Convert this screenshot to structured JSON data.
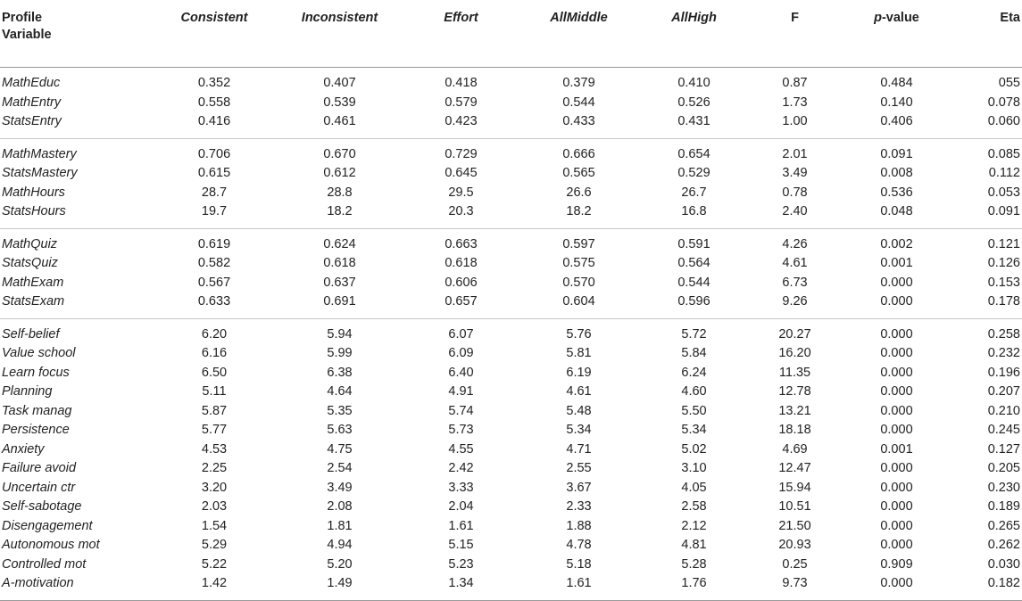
{
  "header": {
    "label_line1": "Profile",
    "label_line2": "Variable",
    "columns": [
      {
        "text": "Consistent",
        "italic": true
      },
      {
        "text": "Inconsistent",
        "italic": true
      },
      {
        "text": "Effort",
        "italic": true
      },
      {
        "text": "AllMiddle",
        "italic": true
      },
      {
        "text": "AllHigh",
        "italic": true
      },
      {
        "text": "F",
        "italic": false
      },
      {
        "text": "p",
        "suffix": "-value",
        "italic": false
      },
      {
        "text": "Eta",
        "italic": false
      }
    ]
  },
  "groups": [
    [
      [
        "MathEduc",
        "0.352",
        "0.407",
        "0.418",
        "0.379",
        "0.410",
        "0.87",
        "0.484",
        "055"
      ],
      [
        "MathEntry",
        "0.558",
        "0.539",
        "0.579",
        "0.544",
        "0.526",
        "1.73",
        "0.140",
        "0.078"
      ],
      [
        "StatsEntry",
        "0.416",
        "0.461",
        "0.423",
        "0.433",
        "0.431",
        "1.00",
        "0.406",
        "0.060"
      ]
    ],
    [
      [
        "MathMastery",
        "0.706",
        "0.670",
        "0.729",
        "0.666",
        "0.654",
        "2.01",
        "0.091",
        "0.085"
      ],
      [
        "StatsMastery",
        "0.615",
        "0.612",
        "0.645",
        "0.565",
        "0.529",
        "3.49",
        "0.008",
        "0.112"
      ],
      [
        "MathHours",
        "28.7",
        "28.8",
        "29.5",
        "26.6",
        "26.7",
        "0.78",
        "0.536",
        "0.053"
      ],
      [
        "StatsHours",
        "19.7",
        "18.2",
        "20.3",
        "18.2",
        "16.8",
        "2.40",
        "0.048",
        "0.091"
      ]
    ],
    [
      [
        "MathQuiz",
        "0.619",
        "0.624",
        "0.663",
        "0.597",
        "0.591",
        "4.26",
        "0.002",
        "0.121"
      ],
      [
        "StatsQuiz",
        "0.582",
        "0.618",
        "0.618",
        "0.575",
        "0.564",
        "4.61",
        "0.001",
        "0.126"
      ],
      [
        "MathExam",
        "0.567",
        "0.637",
        "0.606",
        "0.570",
        "0.544",
        "6.73",
        "0.000",
        "0.153"
      ],
      [
        "StatsExam",
        "0.633",
        "0.691",
        "0.657",
        "0.604",
        "0.596",
        "9.26",
        "0.000",
        "0.178"
      ]
    ],
    [
      [
        "Self-belief",
        "6.20",
        "5.94",
        "6.07",
        "5.76",
        "5.72",
        "20.27",
        "0.000",
        "0.258"
      ],
      [
        "Value school",
        "6.16",
        "5.99",
        "6.09",
        "5.81",
        "5.84",
        "16.20",
        "0.000",
        "0.232"
      ],
      [
        "Learn focus",
        "6.50",
        "6.38",
        "6.40",
        "6.19",
        "6.24",
        "11.35",
        "0.000",
        "0.196"
      ],
      [
        "Planning",
        "5.11",
        "4.64",
        "4.91",
        "4.61",
        "4.60",
        "12.78",
        "0.000",
        "0.207"
      ],
      [
        "Task manag",
        "5.87",
        "5.35",
        "5.74",
        "5.48",
        "5.50",
        "13.21",
        "0.000",
        "0.210"
      ],
      [
        "Persistence",
        "5.77",
        "5.63",
        "5.73",
        "5.34",
        "5.34",
        "18.18",
        "0.000",
        "0.245"
      ],
      [
        "Anxiety",
        "4.53",
        "4.75",
        "4.55",
        "4.71",
        "5.02",
        "4.69",
        "0.001",
        "0.127"
      ],
      [
        "Failure avoid",
        "2.25",
        "2.54",
        "2.42",
        "2.55",
        "3.10",
        "12.47",
        "0.000",
        "0.205"
      ],
      [
        "Uncertain ctr",
        "3.20",
        "3.49",
        "3.33",
        "3.67",
        "4.05",
        "15.94",
        "0.000",
        "0.230"
      ],
      [
        "Self-sabotage",
        "2.03",
        "2.08",
        "2.04",
        "2.33",
        "2.58",
        "10.51",
        "0.000",
        "0.189"
      ],
      [
        "Disengagement",
        "1.54",
        "1.81",
        "1.61",
        "1.88",
        "2.12",
        "21.50",
        "0.000",
        "0.265"
      ],
      [
        "Autonomous mot",
        "5.29",
        "4.94",
        "5.15",
        "4.78",
        "4.81",
        "20.93",
        "0.000",
        "0.262"
      ],
      [
        "Controlled mot",
        "5.22",
        "5.20",
        "5.23",
        "5.18",
        "5.28",
        "0.25",
        "0.909",
        "0.030"
      ],
      [
        "A-motivation",
        "1.42",
        "1.49",
        "1.34",
        "1.61",
        "1.76",
        "9.73",
        "0.000",
        "0.182"
      ]
    ]
  ]
}
